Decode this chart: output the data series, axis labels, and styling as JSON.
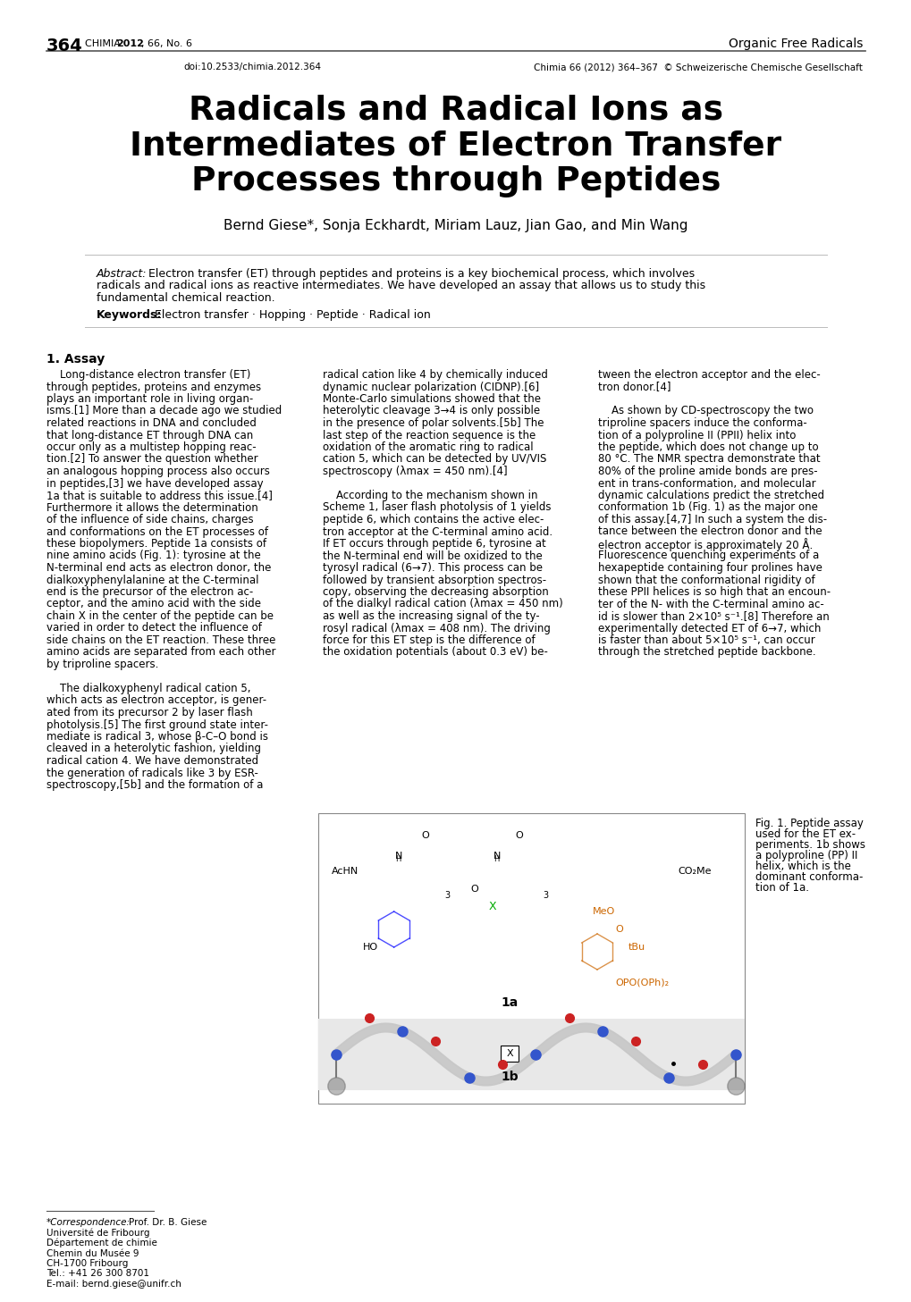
{
  "page_number": "364",
  "journal_chimia": "CHIMIA ",
  "journal_year": "2012",
  "journal_rest": ", 66, No. 6",
  "journal_right": "Organic Free Radicals",
  "doi_left": "doi:10.2533/chimia.2012.364",
  "doi_right": "Chimia 66 (2012) 364–367  © Schweizerische Chemische Gesellschaft",
  "title_line1": "Radicals and Radical Ions as",
  "title_line2": "Intermediates of Electron Transfer",
  "title_line3": "Processes through Peptides",
  "authors": "Bernd Giese*, Sonja Eckhardt, Miriam Lauz, Jian Gao, and Min Wang",
  "abstract_label": "Abstract:",
  "abstract_lines": [
    "Electron transfer (ET) through peptides and proteins is a key biochemical process, which involves",
    "radicals and radical ions as reactive intermediates. We have developed an assay that allows us to study this",
    "fundamental chemical reaction."
  ],
  "keywords_label": "Keywords:",
  "keywords_text": "Electron transfer · Hopping · Peptide · Radical ion",
  "section1_title": "1. Assay",
  "col1_lines": [
    "    Long-distance electron transfer (ET)",
    "through peptides, proteins and enzymes",
    "plays an important role in living organ-",
    "isms.[1] More than a decade ago we studied",
    "related reactions in DNA and concluded",
    "that long-distance ET through DNA can",
    "occur only as a multistep hopping reac-",
    "tion.[2] To answer the question whether",
    "an analogous hopping process also occurs",
    "in peptides,[3] we have developed assay",
    "1a that is suitable to address this issue.[4]",
    "Furthermore it allows the determination",
    "of the influence of side chains, charges",
    "and conformations on the ET processes of",
    "these biopolymers. Peptide 1a consists of",
    "nine amino acids (Fig. 1): tyrosine at the",
    "N-terminal end acts as electron donor, the",
    "dialkoxyphenylalanine at the C-terminal",
    "end is the precursor of the electron ac-",
    "ceptor, and the amino acid with the side",
    "chain X in the center of the peptide can be",
    "varied in order to detect the influence of",
    "side chains on the ET reaction. These three",
    "amino acids are separated from each other",
    "by triproline spacers.",
    "",
    "    The dialkoxyphenyl radical cation 5,",
    "which acts as electron acceptor, is gener-",
    "ated from its precursor 2 by laser flash",
    "photolysis.[5] The first ground state inter-",
    "mediate is radical 3, whose β-C–O bond is",
    "cleaved in a heterolytic fashion, yielding",
    "radical cation 4. We have demonstrated",
    "the generation of radicals like 3 by ESR-",
    "spectroscopy,[5b] and the formation of a"
  ],
  "col2_lines_top": [
    "radical cation like 4 by chemically induced",
    "dynamic nuclear polarization (CIDNP).[6]",
    "Monte-Carlo simulations showed that the",
    "heterolytic cleavage 3→4 is only possible",
    "in the presence of polar solvents.[5b] The",
    "last step of the reaction sequence is the",
    "oxidation of the aromatic ring to radical",
    "cation 5, which can be detected by UV/VIS",
    "spectroscopy (λmax = 450 nm).[4]",
    "",
    "    According to the mechanism shown in",
    "Scheme 1, laser flash photolysis of 1 yields",
    "peptide 6, which contains the active elec-",
    "tron acceptor at the C-terminal amino acid.",
    "If ET occurs through peptide 6, tyrosine at",
    "the N-terminal end will be oxidized to the",
    "tyrosyl radical (6→7). This process can be",
    "followed by transient absorption spectros-",
    "copy, observing the decreasing absorption",
    "of the dialkyl radical cation (λmax = 450 nm)",
    "as well as the increasing signal of the ty-",
    "rosyl radical (λmax = 408 nm). The driving",
    "force for this ET step is the difference of",
    "the oxidation potentials (about 0.3 eV) be-"
  ],
  "col3_lines_top": [
    "tween the electron acceptor and the elec-",
    "tron donor.[4]",
    "",
    "    As shown by CD-spectroscopy the two",
    "triproline spacers induce the conforma-",
    "tion of a polyproline II (PPII) helix into",
    "the peptide, which does not change up to",
    "80 °C. The NMR spectra demonstrate that",
    "80% of the proline amide bonds are pres-",
    "ent in trans-conformation, and molecular",
    "dynamic calculations predict the stretched",
    "conformation 1b (Fig. 1) as the major one",
    "of this assay.[4,7] In such a system the dis-",
    "tance between the electron donor and the",
    "electron acceptor is approximately 20 Å.",
    "Fluorescence quenching experiments of a",
    "hexapeptide containing four prolines have",
    "shown that the conformational rigidity of",
    "these PPII helices is so high that an encoun-",
    "ter of the N- with the C-terminal amino ac-",
    "id is slower than 2×10⁵ s⁻¹.[8] Therefore an",
    "experimentally detected ET of 6→7, which",
    "is faster than about 5×10⁵ s⁻¹, can occur",
    "through the stretched peptide backbone."
  ],
  "fig1_caption_lines": [
    "Fig. 1. Peptide assay",
    "used for the ET ex-",
    "periments. 1b shows",
    "a polyproline (PP) II",
    "helix, which is the",
    "dominant conforma-",
    "tion of 1a."
  ],
  "footnote_lines": [
    "*Correspondence: Prof. Dr. B. Giese",
    "Université de Fribourg",
    "Département de chimie",
    "Chemin du Musée 9",
    "CH-1700 Fribourg",
    "Tel.: +41 26 300 8701",
    "E-mail: bernd.giese@unifr.ch"
  ],
  "bg_color": "#ffffff"
}
